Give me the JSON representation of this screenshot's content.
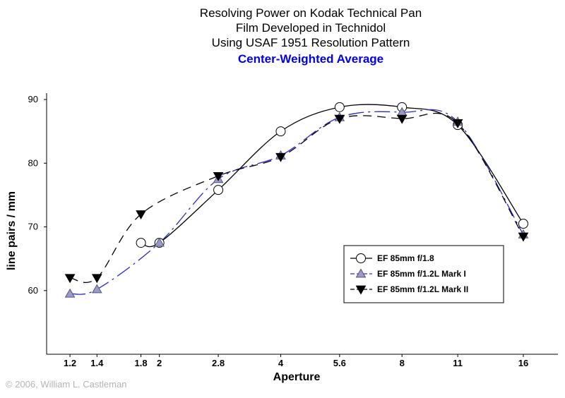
{
  "chart_data": {
    "type": "line",
    "title_lines": [
      "Resolving Power on Kodak Technical Pan",
      "Film Developed in Technidol",
      "Using USAF 1951 Resolution Pattern"
    ],
    "subtitle": "Center-Weighted Average",
    "subtitle_color": "#0000ee",
    "xlabel": "Aperture",
    "ylabel": "line pairs / mm",
    "x_scale": "log",
    "x_ticks": [
      1.2,
      1.4,
      1.8,
      2,
      2.8,
      4,
      5.6,
      8,
      11,
      16
    ],
    "x_tick_labels": [
      "1.2",
      "1.4",
      "1.8",
      "2",
      "2.8",
      "4",
      "5.6",
      "8",
      "11",
      "16"
    ],
    "xlim": [
      1.05,
      19.5
    ],
    "ylim": [
      50,
      91
    ],
    "y_ticks": [
      60,
      70,
      80,
      90
    ],
    "y_tick_labels": [
      "60",
      "70",
      "80",
      "90"
    ],
    "grid": false,
    "legend_position": "lower-right",
    "series": [
      {
        "name": "EF 85mm f/1.8",
        "marker": "circle",
        "line_color": "#000000",
        "marker_fill": "#ffffff",
        "marker_stroke": "#000000",
        "dash": "",
        "x": [
          1.8,
          2,
          2.8,
          4,
          5.6,
          8,
          11,
          16
        ],
        "y": [
          67.5,
          67.5,
          75.8,
          85,
          88.8,
          88.8,
          86,
          70.5
        ]
      },
      {
        "name": "EF 85mm f/1.2L Mark I",
        "marker": "triangle-up",
        "line_color": "#2a2acc",
        "marker_fill": "#9a9ac8",
        "marker_stroke": "#555577",
        "dash": "22,6,3,6",
        "x": [
          1.2,
          1.4,
          2,
          2.8,
          4,
          5.6,
          8,
          11,
          16
        ],
        "y": [
          59.5,
          60.2,
          67.5,
          77.5,
          81.2,
          87.2,
          88,
          86.5,
          68.8
        ]
      },
      {
        "name": "EF 85mm f/1.2L Mark II",
        "marker": "triangle-down",
        "line_color": "#000000",
        "marker_fill": "#000000",
        "marker_stroke": "#000000",
        "dash": "12,8",
        "x": [
          1.2,
          1.4,
          1.8,
          2.8,
          4,
          5.6,
          8,
          11,
          16
        ],
        "y": [
          62,
          62,
          72,
          78,
          81,
          87,
          87,
          86.3,
          68.5
        ]
      }
    ]
  },
  "copyright": "© 2006, William L. Castleman"
}
